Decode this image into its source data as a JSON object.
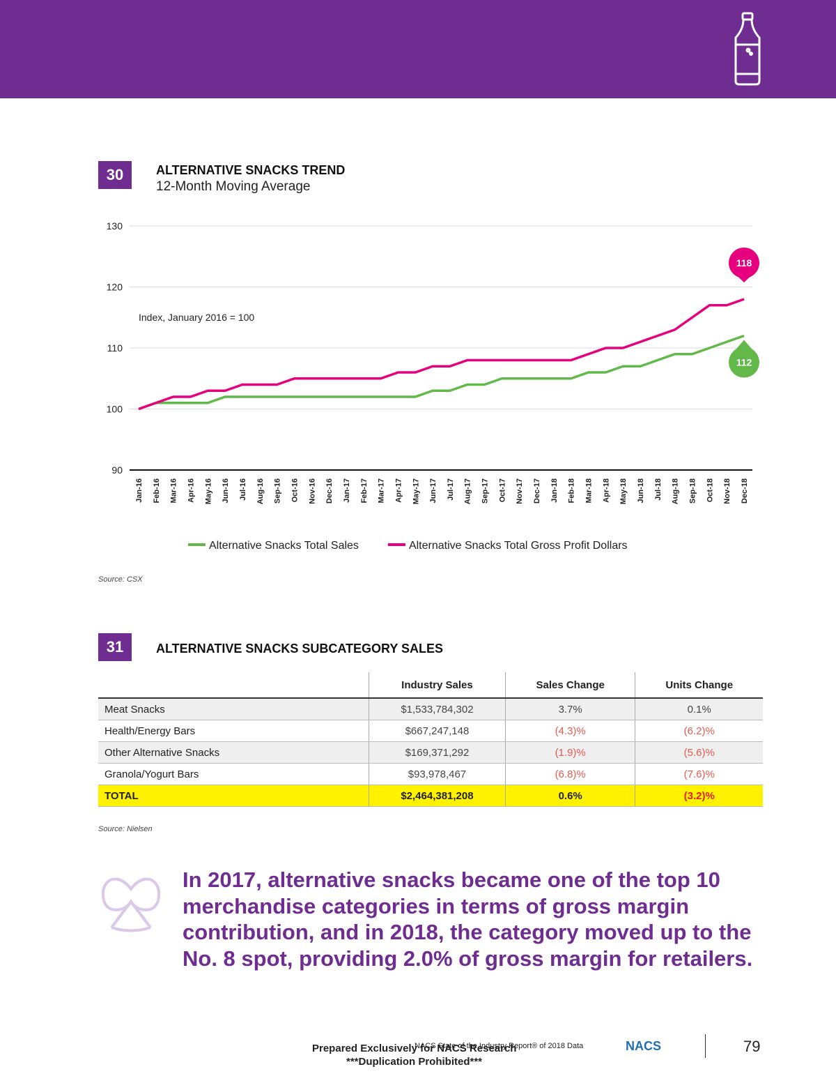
{
  "figure30": {
    "number": "30",
    "title": "ALTERNATIVE SNACKS TREND",
    "subtitle": "12-Month Moving Average",
    "source": "Source: CSX"
  },
  "chart_data": {
    "type": "line",
    "annotation": "Index, January 2016 = 100",
    "categories": [
      "Jan-16",
      "Feb-16",
      "Mar-16",
      "Apr-16",
      "May-16",
      "Jun-16",
      "Jul-16",
      "Aug-16",
      "Sep-16",
      "Oct-16",
      "Nov-16",
      "Dec-16",
      "Jan-17",
      "Feb-17",
      "Mar-17",
      "Apr-17",
      "May-17",
      "Jun-17",
      "Jul-17",
      "Aug-17",
      "Sep-17",
      "Oct-17",
      "Nov-17",
      "Dec-17",
      "Jan-18",
      "Feb-18",
      "Mar-18",
      "Apr-18",
      "May-18",
      "Jun-18",
      "Jul-18",
      "Aug-18",
      "Sep-18",
      "Oct-18",
      "Nov-18",
      "Dec-18"
    ],
    "series": [
      {
        "name": "Alternative Snacks Total Sales",
        "color": "#62b94a",
        "values": [
          100,
          101,
          101,
          101,
          101,
          102,
          102,
          102,
          102,
          102,
          102,
          102,
          102,
          102,
          102,
          102,
          102,
          103,
          103,
          104,
          104,
          105,
          105,
          105,
          105,
          105,
          106,
          106,
          107,
          107,
          108,
          109,
          109,
          110,
          111,
          112
        ]
      },
      {
        "name": "Alternative Snacks Total Gross Profit Dollars",
        "color": "#e6007e",
        "values": [
          100,
          101,
          102,
          102,
          103,
          103,
          104,
          104,
          104,
          105,
          105,
          105,
          105,
          105,
          105,
          106,
          106,
          107,
          107,
          108,
          108,
          108,
          108,
          108,
          108,
          108,
          109,
          110,
          110,
          111,
          112,
          113,
          115,
          117,
          117,
          118
        ]
      }
    ],
    "ylim": [
      90,
      130
    ],
    "yticks": [
      90,
      100,
      110,
      120,
      130
    ],
    "grid": true
  },
  "figure31": {
    "number": "31",
    "title": "ALTERNATIVE SNACKS SUBCATEGORY SALES",
    "columns": [
      "Industry Sales",
      "Sales Change",
      "Units Change"
    ],
    "rows": [
      [
        "Meat Snacks",
        "$1,533,784,302",
        "3.7%",
        "0.1%"
      ],
      [
        "Health/Energy Bars",
        "$667,247,148",
        "(4.3)%",
        "(6.2)%"
      ],
      [
        "Other Alternative Snacks",
        "$169,371,292",
        "(1.9)%",
        "(5.6)%"
      ],
      [
        "Granola/Yogurt Bars",
        "$93,978,467",
        "(6.8)%",
        "(7.6)%"
      ]
    ],
    "total": [
      "TOTAL",
      "$2,464,381,208",
      "0.6%",
      "(3.2)%"
    ],
    "source": "Source: Nielsen"
  },
  "callout": "In 2017, alternative snacks became one of the top 10 merchandise categories in terms of gross margin contribution, and in 2018, the category moved up to the No. 8 spot, providing 2.0% of gross margin for retailers.",
  "footer": {
    "report": "NACS State of the Industry Report® of 2018 Data",
    "prepared": "Prepared Exclusively for NACS Research",
    "prohibited": "***Duplication Prohibited***",
    "logo": "NACS",
    "page": "79"
  }
}
